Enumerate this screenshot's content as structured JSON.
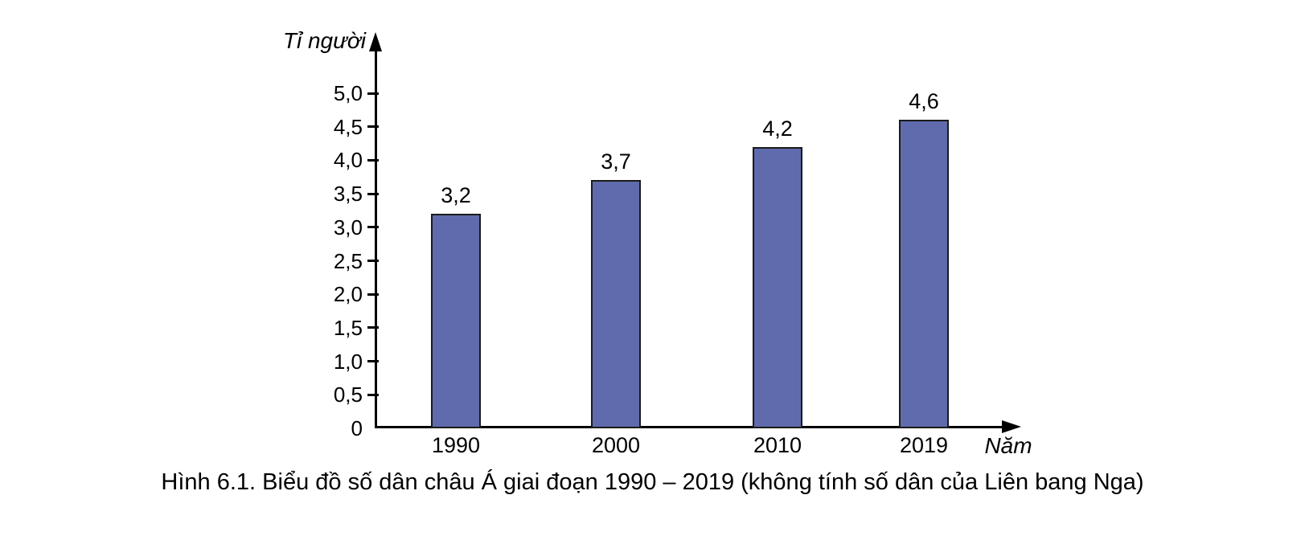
{
  "figure": {
    "caption": "Hình 6.1. Biểu đồ số dân châu Á giai đoạn 1990 – 2019 (không tính số dân của Liên bang Nga)"
  },
  "chart_data": {
    "type": "bar",
    "title": "Hình 6.1. Biểu đồ số dân châu Á giai đoạn 1990 – 2019 (không tính số dân của Liên bang Nga)",
    "categories": [
      "1990",
      "2000",
      "2010",
      "2019"
    ],
    "values": [
      3.2,
      3.7,
      4.2,
      4.6
    ],
    "value_labels": [
      "3,2",
      "3,7",
      "4,2",
      "4,6"
    ],
    "xlabel": "Năm",
    "ylabel": "Tỉ người",
    "ylim": [
      0,
      5.5
    ],
    "grid": false,
    "legend": "none",
    "y_ticks": [
      {
        "value": 0,
        "label": "0"
      },
      {
        "value": 0.5,
        "label": "0,5"
      },
      {
        "value": 1.0,
        "label": "1,0"
      },
      {
        "value": 1.5,
        "label": "1,5"
      },
      {
        "value": 2.0,
        "label": "2,0"
      },
      {
        "value": 2.5,
        "label": "2,5"
      },
      {
        "value": 3.0,
        "label": "3,0"
      },
      {
        "value": 3.5,
        "label": "3,5"
      },
      {
        "value": 4.0,
        "label": "4,0"
      },
      {
        "value": 4.5,
        "label": "4,5"
      },
      {
        "value": 5.0,
        "label": "5,0"
      }
    ],
    "colors": {
      "bar_fill": "#5f6bac",
      "bar_border": "#1a1a1a",
      "axis": "#000000",
      "text": "#000000"
    }
  }
}
